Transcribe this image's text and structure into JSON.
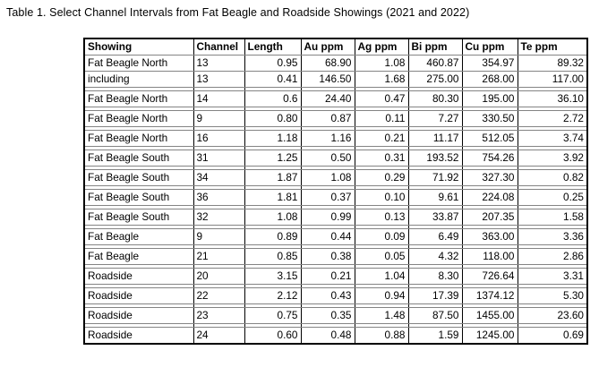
{
  "title": "Table 1. Select Channel Intervals from Fat Beagle and Roadside Showings (2021 and 2022)",
  "colors": {
    "background": "#ffffff",
    "text": "#000000",
    "grid_vertical": "#000000",
    "grid_horizontal": "#848484",
    "outer_border": "#000000"
  },
  "table": {
    "columns": [
      "Showing",
      "Channel",
      "Length",
      "Au ppm",
      "Ag ppm",
      "Bi ppm",
      "Cu ppm",
      "Te ppm"
    ],
    "rows": [
      {
        "cells": [
          "Fat Beagle North",
          "13",
          "0.95",
          "68.90",
          "1.08",
          "460.87",
          "354.97",
          "89.32"
        ],
        "gap_after": false
      },
      {
        "cells": [
          "including",
          "13",
          "0.41",
          "146.50",
          "1.68",
          "275.00",
          "268.00",
          "117.00"
        ],
        "gap_after": true
      },
      {
        "cells": [
          "Fat Beagle North",
          "14",
          "0.6",
          "24.40",
          "0.47",
          "80.30",
          "195.00",
          "36.10"
        ],
        "gap_after": true
      },
      {
        "cells": [
          "Fat Beagle North",
          "9",
          "0.80",
          "0.87",
          "0.11",
          "7.27",
          "330.50",
          "2.72"
        ],
        "gap_after": true
      },
      {
        "cells": [
          "Fat Beagle North",
          "16",
          "1.18",
          "1.16",
          "0.21",
          "11.17",
          "512.05",
          "3.74"
        ],
        "gap_after": true
      },
      {
        "cells": [
          "Fat Beagle South",
          "31",
          "1.25",
          "0.50",
          "0.31",
          "193.52",
          "754.26",
          "3.92"
        ],
        "gap_after": true
      },
      {
        "cells": [
          "Fat Beagle South",
          "34",
          "1.87",
          "1.08",
          "0.29",
          "71.92",
          "327.30",
          "0.82"
        ],
        "gap_after": true
      },
      {
        "cells": [
          "Fat Beagle South",
          "36",
          "1.81",
          "0.37",
          "0.10",
          "9.61",
          "224.08",
          "0.25"
        ],
        "gap_after": true
      },
      {
        "cells": [
          "Fat Beagle South",
          "32",
          "1.08",
          "0.99",
          "0.13",
          "33.87",
          "207.35",
          "1.58"
        ],
        "gap_after": true
      },
      {
        "cells": [
          "Fat Beagle",
          "9",
          "0.89",
          "0.44",
          "0.09",
          "6.49",
          "363.00",
          "3.36"
        ],
        "gap_after": true
      },
      {
        "cells": [
          "Fat Beagle",
          "21",
          "0.85",
          "0.38",
          "0.05",
          "4.32",
          "118.00",
          "2.86"
        ],
        "gap_after": true
      },
      {
        "cells": [
          "Roadside",
          "20",
          "3.15",
          "0.21",
          "1.04",
          "8.30",
          "726.64",
          "3.31"
        ],
        "gap_after": true
      },
      {
        "cells": [
          "Roadside",
          "22",
          "2.12",
          "0.43",
          "0.94",
          "17.39",
          "1374.12",
          "5.30"
        ],
        "gap_after": true
      },
      {
        "cells": [
          "Roadside",
          "23",
          "0.75",
          "0.35",
          "1.48",
          "87.50",
          "1455.00",
          "23.60"
        ],
        "gap_after": true
      },
      {
        "cells": [
          "Roadside",
          "24",
          "0.60",
          "0.48",
          "0.88",
          "1.59",
          "1245.00",
          "0.69"
        ],
        "gap_after": false
      }
    ]
  }
}
